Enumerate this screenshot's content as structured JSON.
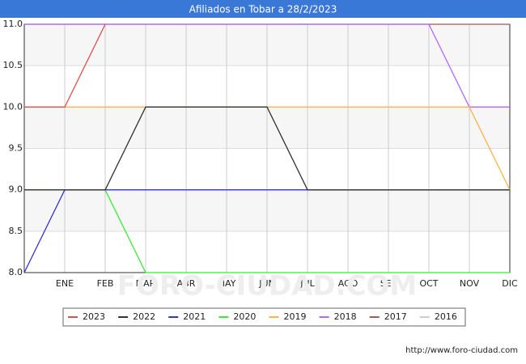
{
  "chart_data": {
    "type": "line",
    "title": "Afiliados en Tobar a 28/2/2023",
    "categories": [
      null,
      "ENE",
      "FEB",
      "MAR",
      "ABR",
      "MAY",
      "JUN",
      "JUL",
      "AGO",
      "SEP",
      "OCT",
      "NOV",
      "DIC"
    ],
    "series": [
      {
        "name": "2023",
        "color": "#e05050",
        "values": [
          10,
          10,
          11,
          null,
          null,
          null,
          null,
          null,
          null,
          null,
          null,
          null,
          null
        ]
      },
      {
        "name": "2022",
        "color": "#333333",
        "values": [
          9,
          9,
          9,
          10,
          10,
          10,
          10,
          9,
          9,
          9,
          9,
          9,
          9
        ]
      },
      {
        "name": "2021",
        "color": "#3333cc",
        "values": [
          8,
          9,
          9,
          9,
          9,
          9,
          9,
          9,
          9,
          9,
          9,
          9,
          9
        ]
      },
      {
        "name": "2020",
        "color": "#33ee33",
        "values": [
          9,
          9,
          9,
          8,
          8,
          8,
          8,
          8,
          8,
          8,
          8,
          8,
          8
        ]
      },
      {
        "name": "2019",
        "color": "#ffb347",
        "values": [
          10,
          10,
          10,
          10,
          10,
          10,
          10,
          10,
          10,
          10,
          10,
          10,
          9
        ]
      },
      {
        "name": "2018",
        "color": "#b266ff",
        "values": [
          11,
          11,
          11,
          11,
          11,
          11,
          11,
          11,
          11,
          11,
          11,
          10,
          10
        ]
      },
      {
        "name": "2017",
        "color": "#a05a5a",
        "values": [
          11,
          11,
          11,
          11,
          11,
          11,
          11,
          11,
          11,
          11,
          11,
          11,
          11
        ]
      },
      {
        "name": "2016",
        "color": "#cccccc",
        "values": [
          null,
          null,
          null,
          null,
          null,
          null,
          null,
          null,
          null,
          null,
          null,
          null,
          null
        ]
      }
    ],
    "ylim": [
      8,
      11
    ],
    "yticks": [
      {
        "value": 8,
        "label": "8.0"
      },
      8.5,
      {
        "value": 9,
        "label": "9.0"
      },
      9.5,
      {
        "value": 10,
        "label": "10.0"
      },
      10.5,
      {
        "value": 11,
        "label": "11.0"
      }
    ],
    "grid": true,
    "watermark": "FORO-CIUDAD.COM",
    "source": "http://www.foro-ciudad.com"
  }
}
